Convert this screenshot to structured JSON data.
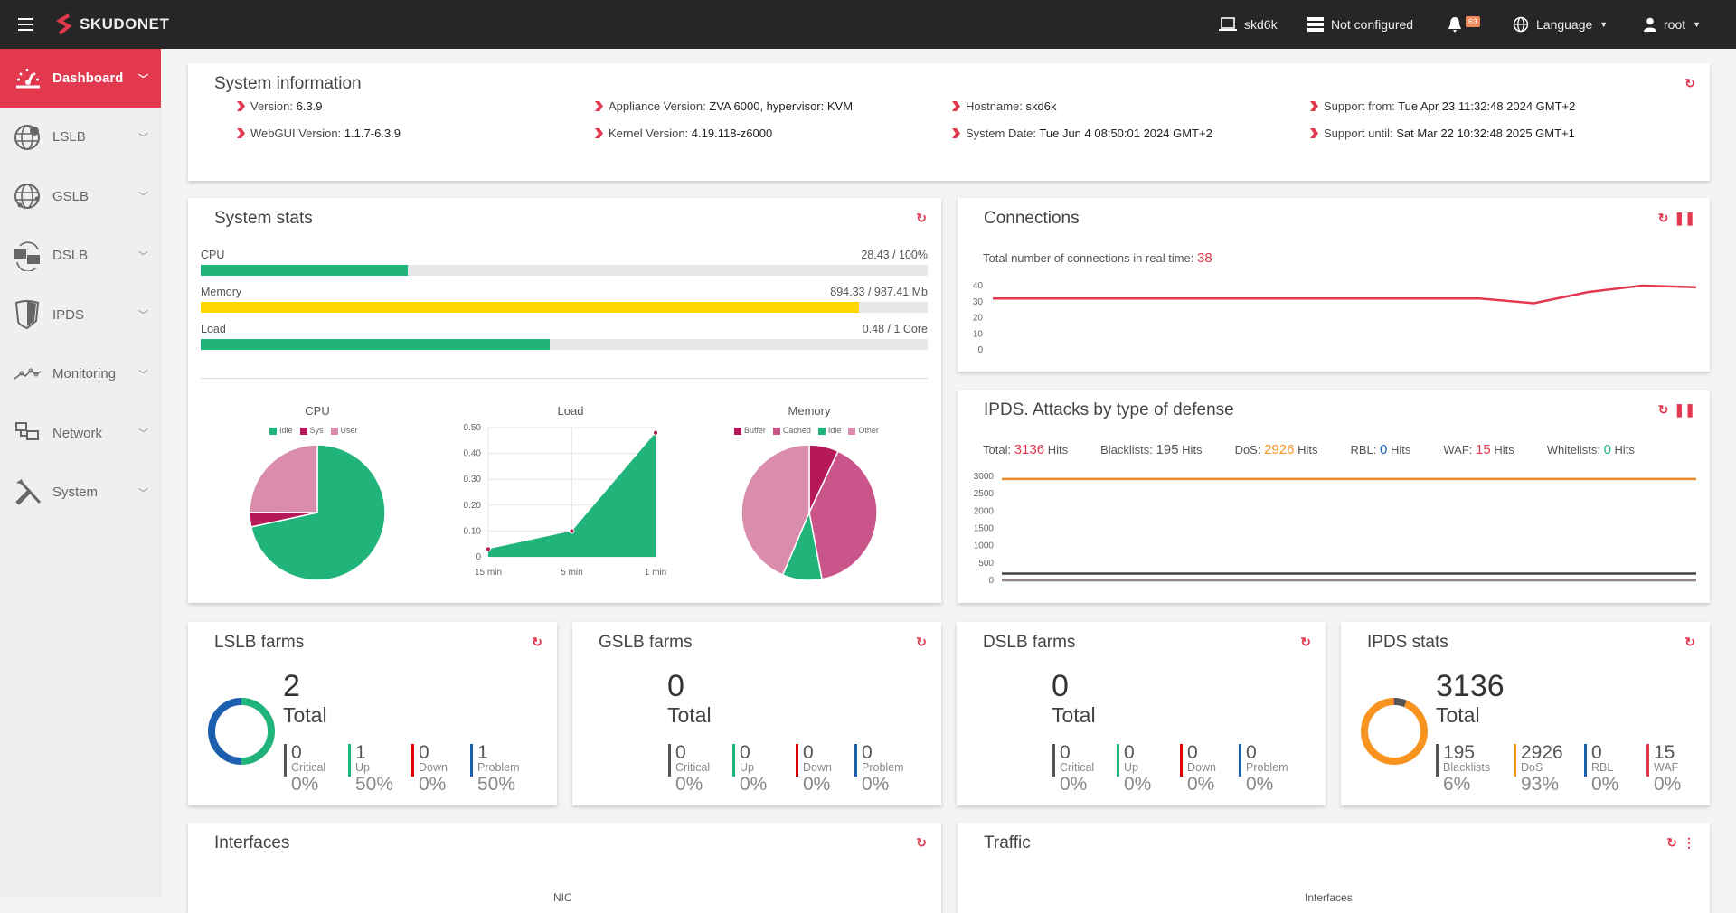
{
  "header": {
    "brand": "SKUDONET",
    "hostname": "skd6k",
    "cluster": "Not configured",
    "notifications": "63",
    "language": "Language",
    "user": "root"
  },
  "sidebar": {
    "items": [
      {
        "label": "Dashboard",
        "icon": "dashboard-gauge-icon",
        "active": true
      },
      {
        "label": "LSLB",
        "icon": "globe-icon"
      },
      {
        "label": "GSLB",
        "icon": "globe-network-icon"
      },
      {
        "label": "DSLB",
        "icon": "datacenter-sync-icon"
      },
      {
        "label": "IPDS",
        "icon": "shield-icon"
      },
      {
        "label": "Monitoring",
        "icon": "monitoring-line-icon"
      },
      {
        "label": "Network",
        "icon": "network-icon"
      },
      {
        "label": "System",
        "icon": "tools-icon"
      }
    ]
  },
  "system_info": {
    "title": "System information",
    "items": [
      {
        "label": "Version:",
        "value": "6.3.9"
      },
      {
        "label": "Appliance Version:",
        "value": "ZVA 6000, hypervisor: KVM"
      },
      {
        "label": "Hostname:",
        "value": "skd6k"
      },
      {
        "label": "Support from:",
        "value": "Tue Apr 23 11:32:48 2024 GMT+2"
      },
      {
        "label": "WebGUI Version:",
        "value": "1.1.7-6.3.9"
      },
      {
        "label": "Kernel Version:",
        "value": "4.19.118-z6000"
      },
      {
        "label": "System Date:",
        "value": "Tue Jun 4 08:50:01 2024 GMT+2"
      },
      {
        "label": "Support until:",
        "value": "Sat Mar 22 10:32:48 2025 GMT+1"
      }
    ]
  },
  "system_stats": {
    "title": "System stats",
    "bars": [
      {
        "label": "CPU",
        "value_text": "28.43 / 100%",
        "percent": 28.43,
        "color": "#21b47a"
      },
      {
        "label": "Memory",
        "value_text": "894.33 / 987.41 Mb",
        "percent": 90.57,
        "color": "#ffd600"
      },
      {
        "label": "Load",
        "value_text": "0.48 / 1 Core",
        "percent": 48,
        "color": "#21b47a"
      }
    ]
  },
  "connections": {
    "title": "Connections",
    "realtime_label": "Total number of connections in real time:",
    "realtime_value": "38"
  },
  "ipds_attacks": {
    "title": "IPDS. Attacks by type of defense",
    "hits_unit": "Hits",
    "summary": [
      {
        "label": "Total:",
        "value": "3136",
        "color": "#e2394f"
      },
      {
        "label": "Blacklists:",
        "value": "195",
        "color": "#555555"
      },
      {
        "label": "DoS:",
        "value": "2926",
        "color": "#f7931e"
      },
      {
        "label": "RBL:",
        "value": "0",
        "color": "#1e5fad"
      },
      {
        "label": "WAF:",
        "value": "15",
        "color": "#e2394f"
      },
      {
        "label": "Whitelists:",
        "value": "0",
        "color": "#21b47a"
      }
    ]
  },
  "farms": [
    {
      "title": "LSLB farms",
      "total": "2",
      "total_label": "Total",
      "donut": true,
      "stats": [
        {
          "value": "0",
          "label": "Critical",
          "pct": "0%",
          "color": "#555555",
          "fraction": 0
        },
        {
          "value": "1",
          "label": "Up",
          "pct": "50%",
          "color": "#21b47a",
          "fraction": 0.5
        },
        {
          "value": "0",
          "label": "Down",
          "pct": "0%",
          "color": "#e00000",
          "fraction": 0
        },
        {
          "value": "1",
          "label": "Problem",
          "pct": "50%",
          "color": "#1e5fad",
          "fraction": 0.5
        }
      ]
    },
    {
      "title": "GSLB farms",
      "total": "0",
      "total_label": "Total",
      "donut": false,
      "stats": [
        {
          "value": "0",
          "label": "Critical",
          "pct": "0%",
          "color": "#555555"
        },
        {
          "value": "0",
          "label": "Up",
          "pct": "0%",
          "color": "#21b47a"
        },
        {
          "value": "0",
          "label": "Down",
          "pct": "0%",
          "color": "#e00000"
        },
        {
          "value": "0",
          "label": "Problem",
          "pct": "0%",
          "color": "#1e5fad"
        }
      ]
    },
    {
      "title": "DSLB farms",
      "total": "0",
      "total_label": "Total",
      "donut": false,
      "stats": [
        {
          "value": "0",
          "label": "Critical",
          "pct": "0%",
          "color": "#555555"
        },
        {
          "value": "0",
          "label": "Up",
          "pct": "0%",
          "color": "#21b47a"
        },
        {
          "value": "0",
          "label": "Down",
          "pct": "0%",
          "color": "#e00000"
        },
        {
          "value": "0",
          "label": "Problem",
          "pct": "0%",
          "color": "#1e5fad"
        }
      ]
    },
    {
      "title": "IPDS stats",
      "total": "3136",
      "total_label": "Total",
      "donut": true,
      "stats": [
        {
          "value": "195",
          "label": "Blacklists",
          "pct": "6%",
          "color": "#555555",
          "fraction": 0.062
        },
        {
          "value": "2926",
          "label": "DoS",
          "pct": "93%",
          "color": "#f7931e",
          "fraction": 0.933
        },
        {
          "value": "0",
          "label": "RBL",
          "pct": "0%",
          "color": "#1e5fad",
          "fraction": 0
        },
        {
          "value": "15",
          "label": "WAF",
          "pct": "0%",
          "color": "#e2394f",
          "fraction": 0.005
        }
      ]
    }
  ],
  "interfaces": {
    "title": "Interfaces",
    "chart_label": "NIC"
  },
  "traffic": {
    "title": "Traffic",
    "chart_label": "Interfaces"
  },
  "chart_data": [
    {
      "type": "pie",
      "title": "CPU",
      "categories": [
        "Idle",
        "Sys",
        "User"
      ],
      "values": [
        71.57,
        3.5,
        24.93
      ],
      "colors": [
        "#21b47a",
        "#b5195a",
        "#d98cab"
      ],
      "legend": "top"
    },
    {
      "type": "area",
      "title": "Load",
      "categories": [
        "15 min",
        "5 min",
        "1 min"
      ],
      "values": [
        0.03,
        0.1,
        0.48
      ],
      "ylim": [
        0,
        0.5
      ],
      "yticks": [
        "0",
        "0.10",
        "0.20",
        "0.30",
        "0.40",
        "0.50"
      ],
      "color": "#21b47a",
      "grid": true
    },
    {
      "type": "pie",
      "title": "Memory",
      "categories": [
        "Buffer",
        "Cached",
        "Idle",
        "Other"
      ],
      "values": [
        7,
        40,
        9.4,
        43.6
      ],
      "colors": [
        "#b5195a",
        "#c9558a",
        "#21b47a",
        "#d98cab"
      ],
      "legend": "top"
    },
    {
      "type": "line",
      "values": [
        32,
        32,
        32,
        32,
        32,
        32,
        32,
        32,
        32,
        32,
        29,
        36,
        40,
        39
      ],
      "ylim": [
        0,
        40
      ],
      "yticks": [
        "0",
        "10",
        "20",
        "30",
        "40"
      ],
      "color": "#e2394f"
    },
    {
      "type": "line",
      "ylim": [
        0,
        3000
      ],
      "yticks": [
        "0",
        "500",
        "1000",
        "1500",
        "2000",
        "2500",
        "3000"
      ],
      "series": [
        {
          "values": [
            2926,
            2926
          ],
          "color": "#e8892a"
        },
        {
          "values": [
            195,
            195
          ],
          "color": "#444444"
        },
        {
          "values": [
            15,
            15
          ],
          "color": "#a06060"
        },
        {
          "values": [
            0,
            0
          ],
          "color": "#888888"
        }
      ]
    }
  ]
}
